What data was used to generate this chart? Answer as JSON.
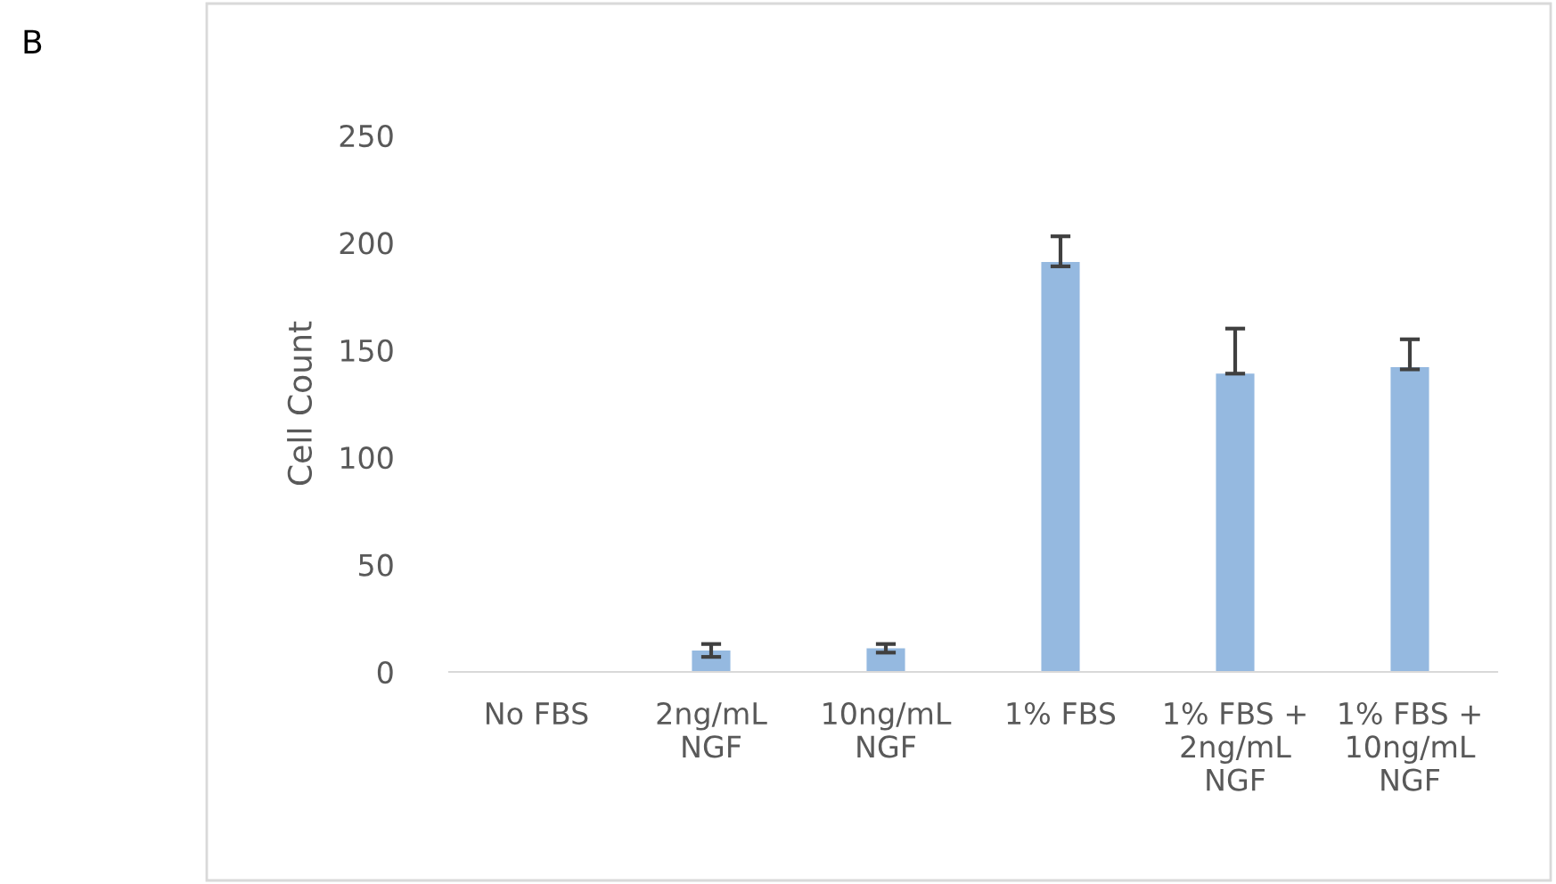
{
  "chart_data": {
    "type": "bar",
    "ylabel": "Cell Count",
    "annotations": [
      "B"
    ],
    "categories": [
      "No FBS",
      "2ng/mL\nNGF",
      "10ng/mL\nNGF",
      "1% FBS",
      "1% FBS +\n2ng/mL\nNGF",
      "1% FBS +\n10ng/mL\nNGF"
    ],
    "values": [
      0,
      10,
      11,
      191,
      139,
      142
    ],
    "errors": [
      null,
      [
        7,
        13
      ],
      [
        9,
        13
      ],
      [
        189,
        203
      ],
      [
        139,
        160
      ],
      [
        141,
        155
      ]
    ],
    "color": "#95b9e0",
    "ylim": [
      0,
      250
    ],
    "yticks": [
      0,
      50,
      100,
      150,
      200,
      250
    ],
    "grid": false
  }
}
